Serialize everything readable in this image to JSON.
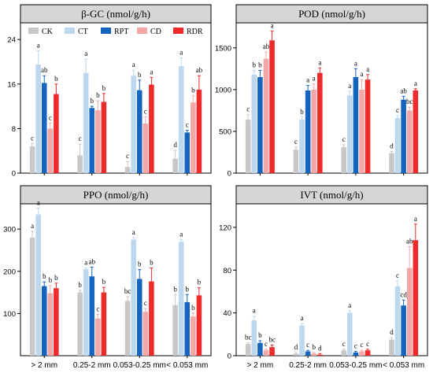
{
  "colors": {
    "CK": "#c8c8c8",
    "CT": "#bdd7ee",
    "RPT": "#1565c0",
    "CD": "#f4a7a7",
    "RDR": "#ee2a2a"
  },
  "legend": [
    "CK",
    "CT",
    "RPT",
    "CD",
    "RDR"
  ],
  "chart_data": [
    {
      "type": "bar",
      "title": "β-GC (nmol/g/h)",
      "ylim": [
        0,
        27
      ],
      "yticks": [
        0,
        8,
        16,
        24
      ],
      "categories": [
        "> 2 mm",
        "0.25-2 mm",
        "0.053-0.25 mm",
        "< 0.053 mm"
      ],
      "show_xlabels": false,
      "legend_placement": "top",
      "series": [
        {
          "name": "CK",
          "values": [
            4.8,
            3.2,
            1.1,
            2.6
          ],
          "errors": [
            0.5,
            2.0,
            1.0,
            1.5
          ],
          "labels": [
            "c",
            "c",
            "c",
            "d"
          ]
        },
        {
          "name": "CT",
          "values": [
            19.5,
            18.0,
            17.5,
            19.2
          ],
          "errors": [
            2.5,
            2.5,
            1.0,
            1.5
          ],
          "labels": [
            "a",
            "a",
            "a",
            "a"
          ]
        },
        {
          "name": "RPT",
          "values": [
            16.2,
            11.7,
            14.9,
            7.3
          ],
          "errors": [
            1.3,
            0.3,
            1.8,
            0.4
          ],
          "labels": [
            "ab",
            "b",
            "b",
            "c"
          ]
        },
        {
          "name": "CD",
          "values": [
            8.0,
            11.3,
            8.9,
            12.7
          ],
          "errors": [
            1.0,
            1.7,
            1.2,
            1.2
          ],
          "labels": [
            "c",
            "b",
            "c",
            "b"
          ]
        },
        {
          "name": "RDR",
          "values": [
            14.2,
            12.8,
            15.9,
            15.0
          ],
          "errors": [
            1.8,
            1.5,
            1.3,
            2.5
          ],
          "labels": [
            "b",
            "b",
            "a",
            "ab"
          ]
        }
      ]
    },
    {
      "type": "bar",
      "title": "POD (nmol/g/h)",
      "ylim": [
        0,
        1800
      ],
      "yticks": [
        0,
        500,
        1000,
        1500
      ],
      "categories": [
        "> 2 mm",
        "0.25-2 mm",
        "0.053-0.25 mm",
        "< 0.053 mm"
      ],
      "show_xlabels": false,
      "series": [
        {
          "name": "CK",
          "values": [
            640,
            280,
            310,
            240
          ],
          "errors": [
            60,
            30,
            30,
            20
          ],
          "labels": [
            "c",
            "c",
            "c",
            "d"
          ]
        },
        {
          "name": "CT",
          "values": [
            1180,
            640,
            930,
            660
          ],
          "errors": [
            50,
            30,
            50,
            30
          ],
          "labels": [
            "b",
            "b",
            "a",
            "c"
          ]
        },
        {
          "name": "RPT",
          "values": [
            1150,
            990,
            1150,
            880
          ],
          "errors": [
            80,
            60,
            100,
            40
          ],
          "labels": [
            "b",
            "a",
            "a",
            "ab"
          ]
        },
        {
          "name": "CD",
          "values": [
            1370,
            1000,
            1000,
            750
          ],
          "errors": [
            80,
            70,
            120,
            40
          ],
          "labels": [
            "ab",
            "a",
            "a",
            "bc"
          ]
        },
        {
          "name": "RDR",
          "values": [
            1590,
            1200,
            1120,
            990
          ],
          "errors": [
            110,
            60,
            60,
            20
          ],
          "labels": [
            "a",
            "a",
            "a",
            "a"
          ]
        }
      ]
    },
    {
      "type": "bar",
      "title": "PPO (nmol/g/h)",
      "ylim": [
        0,
        360
      ],
      "yticks": [
        100,
        200,
        300
      ],
      "categories": [
        "> 2 mm",
        "0.25-2 mm",
        "0.053-0.25 mm",
        "< 0.053 mm"
      ],
      "show_xlabels": true,
      "series": [
        {
          "name": "CK",
          "values": [
            280,
            150,
            130,
            120
          ],
          "errors": [
            15,
            5,
            10,
            25
          ],
          "labels": [
            "a",
            "b",
            "bc",
            "b"
          ]
        },
        {
          "name": "CT",
          "values": [
            335,
            205,
            275,
            270
          ],
          "errors": [
            15,
            3,
            5,
            5
          ],
          "labels": [
            "a",
            "a",
            "a",
            "a"
          ]
        },
        {
          "name": "RPT",
          "values": [
            165,
            188,
            182,
            127
          ],
          "errors": [
            10,
            22,
            22,
            18
          ],
          "labels": [
            "b",
            "ab",
            "b",
            "b"
          ]
        },
        {
          "name": "CD",
          "values": [
            148,
            88,
            104,
            93
          ],
          "errors": [
            18,
            10,
            8,
            8
          ],
          "labels": [
            "b",
            "c",
            "c",
            "b"
          ]
        },
        {
          "name": "RDR",
          "values": [
            160,
            150,
            176,
            143
          ],
          "errors": [
            12,
            12,
            32,
            18
          ],
          "labels": [
            "b",
            "b",
            "b",
            "b"
          ]
        }
      ]
    },
    {
      "type": "bar",
      "title": "IVT (nmol/g/h)",
      "ylim": [
        0,
        142
      ],
      "yticks": [
        0,
        40,
        80,
        120
      ],
      "categories": [
        "> 2 mm",
        "0.25-2 mm",
        "0.053-0.25 mm",
        "< 0.053 mm"
      ],
      "show_xlabels": true,
      "series": [
        {
          "name": "CK",
          "values": [
            11,
            2,
            5,
            15
          ],
          "errors": [
            1,
            1,
            1,
            2
          ],
          "labels": [
            "bc",
            "d",
            "c",
            "d"
          ]
        },
        {
          "name": "CT",
          "values": [
            33,
            28,
            40,
            65
          ],
          "errors": [
            4,
            2,
            2,
            5
          ],
          "labels": [
            "a",
            "a",
            "a",
            "c"
          ]
        },
        {
          "name": "RPT",
          "values": [
            12,
            4,
            3,
            47
          ],
          "errors": [
            2,
            1,
            1,
            5
          ],
          "labels": [
            "b",
            "c",
            "c",
            "cd"
          ]
        },
        {
          "name": "CD",
          "values": [
            5,
            2,
            4,
            82
          ],
          "errors": [
            1,
            1,
            1,
            20
          ],
          "labels": [
            "c",
            "b",
            "c",
            "ab"
          ]
        },
        {
          "name": "RDR",
          "values": [
            8,
            1,
            5,
            108
          ],
          "errors": [
            2,
            1,
            1,
            15
          ],
          "labels": [
            "bc",
            "d",
            "c",
            "a"
          ]
        }
      ]
    }
  ]
}
